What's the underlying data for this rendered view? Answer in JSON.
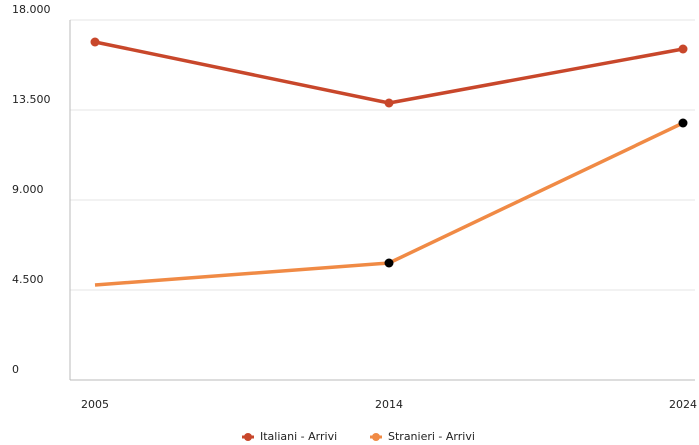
{
  "chart_data": {
    "type": "line",
    "categories": [
      "2005",
      "2014",
      "2024"
    ],
    "series": [
      {
        "name": "Italiani - Arrivi",
        "color": "#c8472b",
        "values": [
          16900,
          13850,
          16550
        ],
        "marker_color": "#c8472b",
        "markers": [
          true,
          true,
          true
        ]
      },
      {
        "name": "Stranieri - Arrivi",
        "color": "#f08a45",
        "values": [
          4750,
          5850,
          12850
        ],
        "marker_color": "#000000",
        "markers": [
          false,
          true,
          true
        ]
      }
    ],
    "ylim": [
      0,
      18000
    ],
    "yticks": [
      0,
      {
        "value": 4500,
        "label": "4.500"
      },
      {
        "value": 9000,
        "label": "9.000"
      },
      {
        "value": 13500,
        "label": "13.500"
      },
      {
        "value": 18000,
        "label": "18.000"
      }
    ],
    "grid": true,
    "legend": "bottom"
  }
}
